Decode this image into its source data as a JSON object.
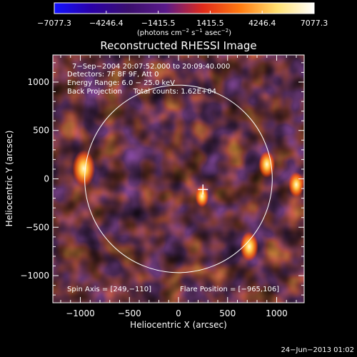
{
  "chart_data": {
    "type": "heatmap",
    "title": "Reconstructed RHESSI Image",
    "xlabel": "Heliocentric X (arcsec)",
    "ylabel": "Heliocentric Y (arcsec)",
    "xlim": [
      -1280,
      1280
    ],
    "ylim": [
      -1280,
      1280
    ],
    "x_ticks": [
      -1000,
      -500,
      0,
      500,
      1000
    ],
    "x_tick_labels": [
      "−1000",
      "−500",
      "0",
      "500",
      "1000"
    ],
    "y_ticks": [
      1000,
      500,
      0,
      -500,
      -1000
    ],
    "y_tick_labels": [
      "1000",
      "500",
      "0",
      "−500",
      "−1000"
    ],
    "colorbar": {
      "min": -7077.3,
      "max": 7077.3,
      "ticks": [
        -7077.3,
        -4246.4,
        -1415.5,
        1415.5,
        4246.4,
        7077.3
      ],
      "tick_labels": [
        "−7077.3",
        "−4246.4",
        "−1415.5",
        "1415.5",
        "4246.4",
        "7077.3"
      ],
      "units_main": "(photons cm",
      "units_exp1": "−2",
      "units_mid": " s",
      "units_exp2": "−1",
      "units_end": " asec",
      "units_exp3": "−2",
      "units_close": ")",
      "colors": [
        "#1212ff",
        "#2a00a8",
        "#3b0f6e",
        "#5a1a8a",
        "#e02a1a",
        "#ff7a10",
        "#ffe070",
        "#ffffff"
      ]
    },
    "annotations": [
      "7−Sep−2004 20:07:52.000 to 20:09:40.000",
      "Detectors: 7F 8F 9F, Att 0",
      "Energy Range: 6.0 − 25.0 keV",
      "Back Projection     Total counts: 1.62E+04"
    ],
    "spin_axis": "Spin Axis = [249,−110]",
    "flare_position": "Flare Position = [−965,106]",
    "limb_radius_arcsec": 955,
    "cross_position": [
      249,
      -110
    ],
    "bright_sources": [
      {
        "x": -965,
        "y": 106,
        "value": 7077
      },
      {
        "x": 720,
        "y": -700,
        "value": 5200
      },
      {
        "x": 900,
        "y": 150,
        "value": 4300
      },
      {
        "x": 1200,
        "y": -60,
        "value": 3900
      },
      {
        "x": 240,
        "y": -180,
        "value": 3000
      }
    ]
  },
  "footer_date": "24−Jun−2013 01:02"
}
